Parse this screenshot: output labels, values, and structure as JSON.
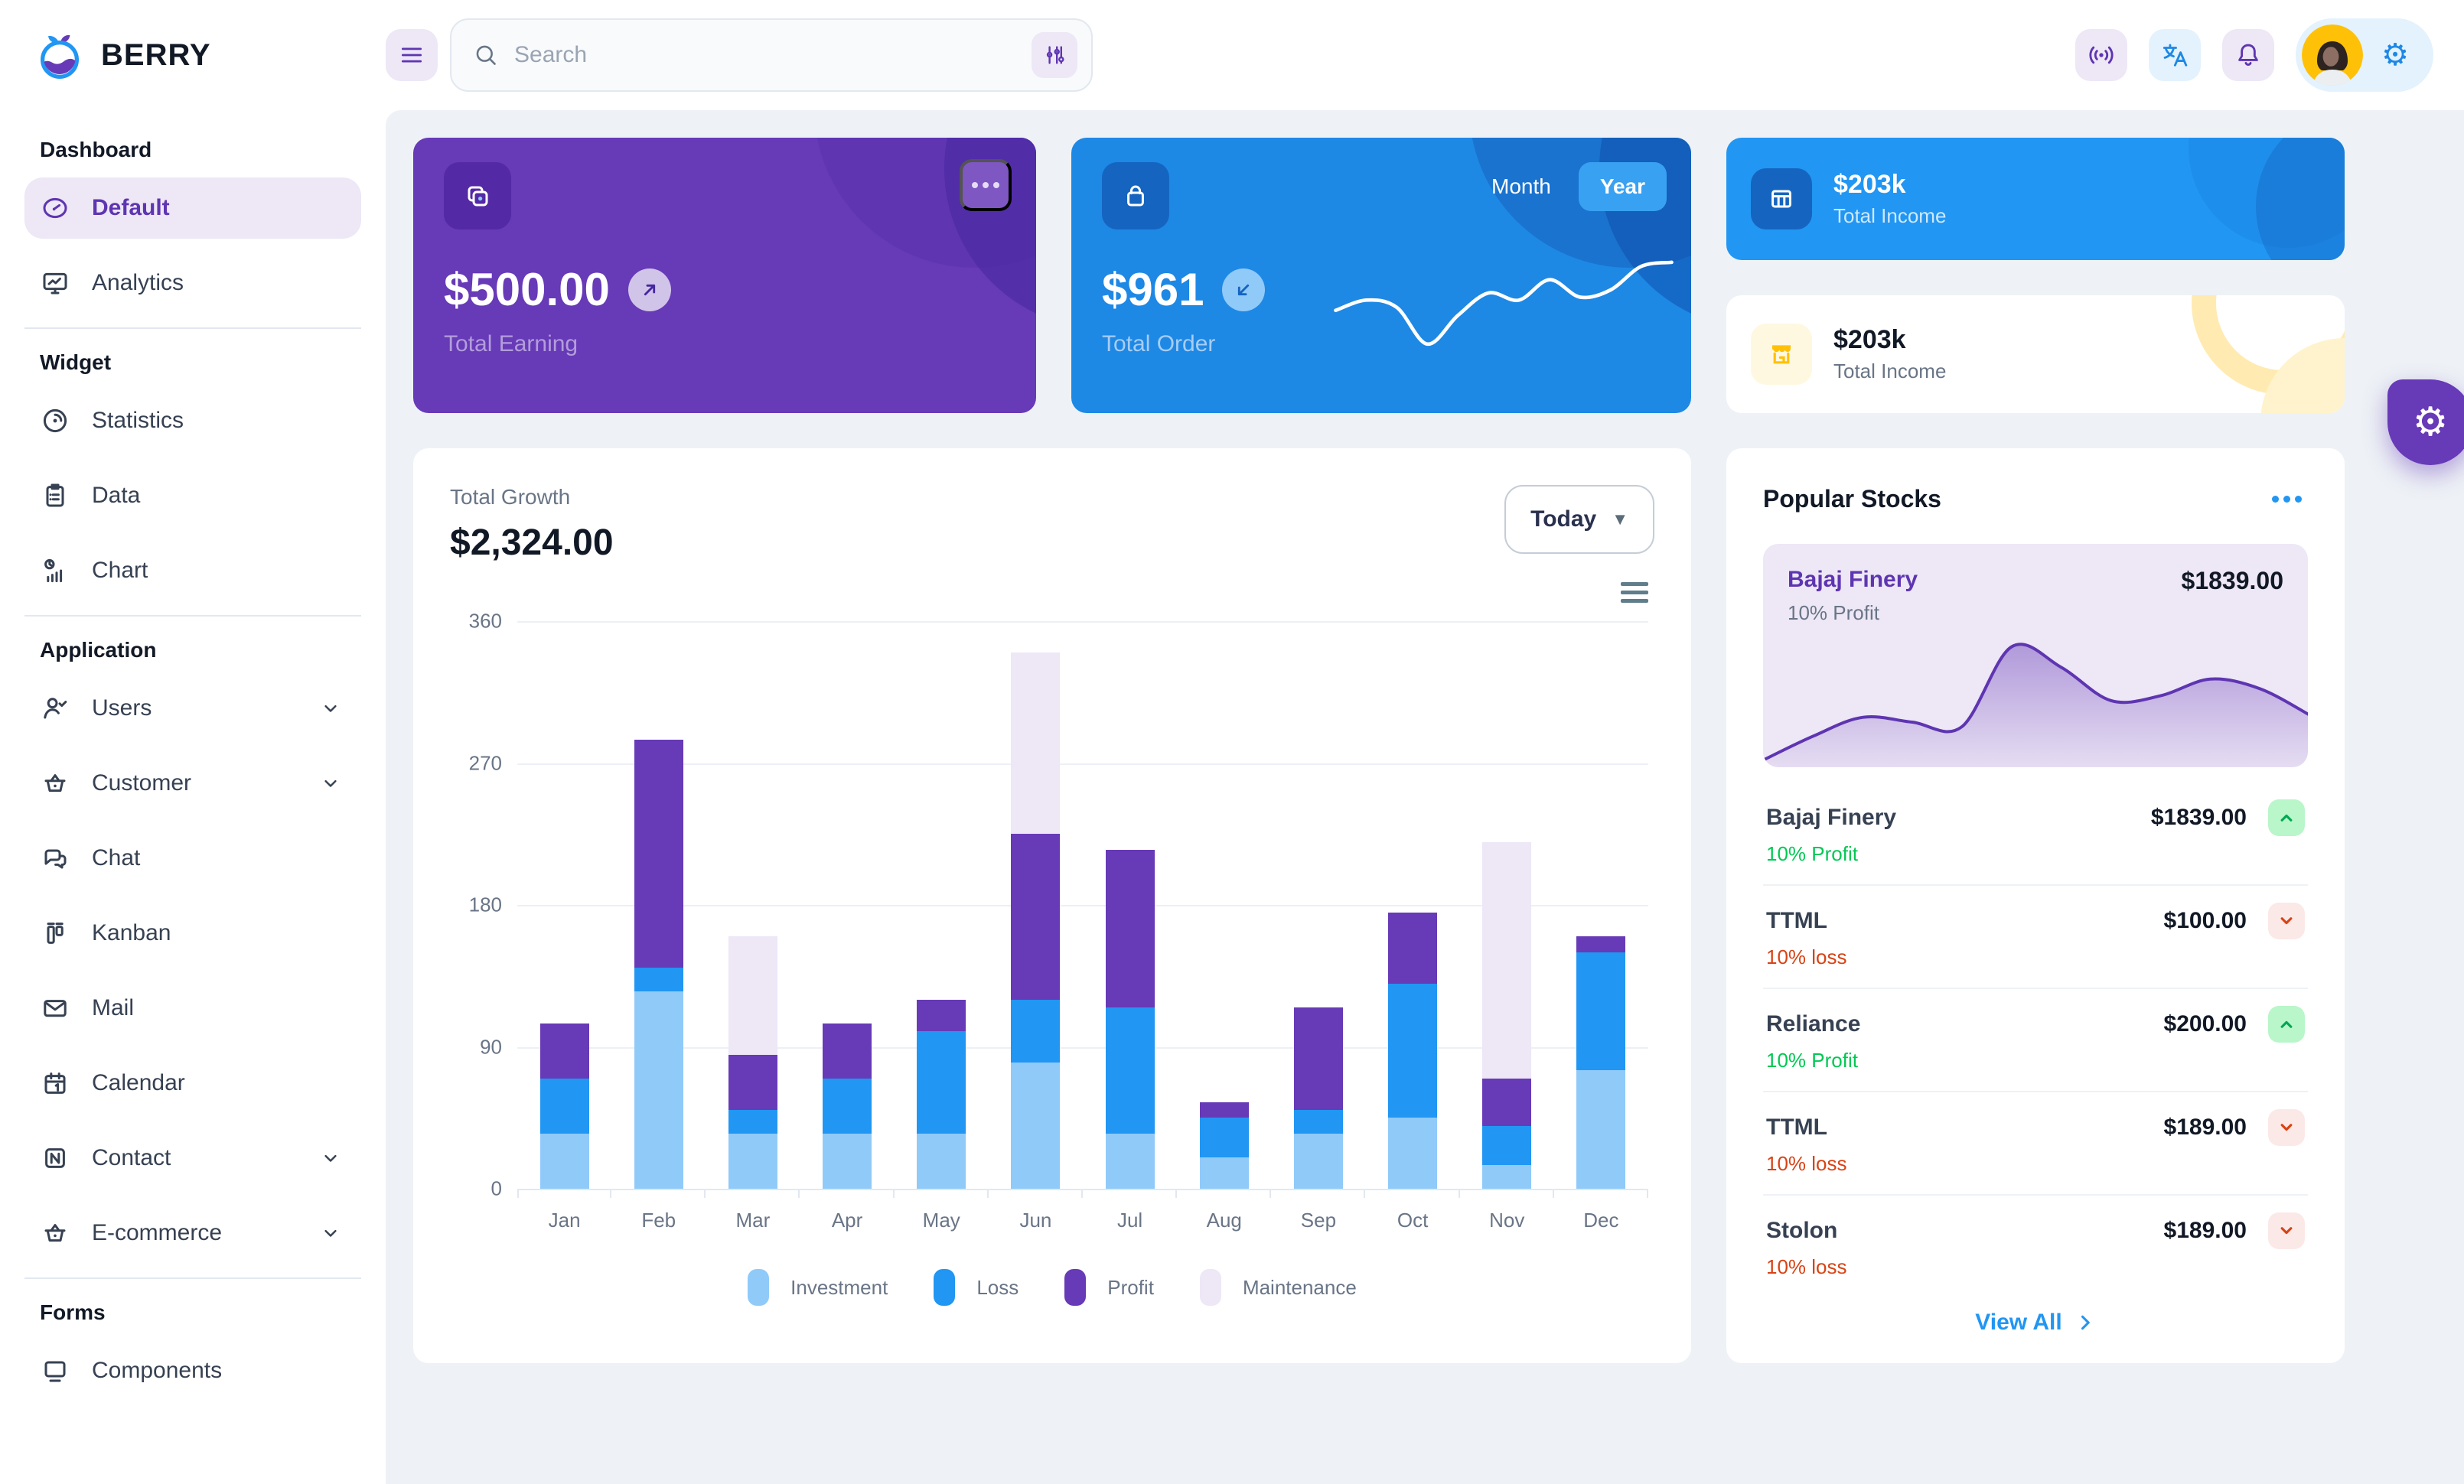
{
  "brand": {
    "name": "BERRY"
  },
  "header": {
    "search_placeholder": "Search",
    "icons": [
      "menu-icon",
      "search-icon",
      "filter-icon",
      "broadcast-icon",
      "translate-icon",
      "notification-icon",
      "avatar",
      "settings-icon"
    ]
  },
  "sidebar": {
    "sections": [
      {
        "title": "Dashboard",
        "items": [
          {
            "label": "Default",
            "icon": "dashboard",
            "active": true
          },
          {
            "label": "Analytics",
            "icon": "analytics"
          }
        ]
      },
      {
        "title": "Widget",
        "items": [
          {
            "label": "Statistics",
            "icon": "statistics"
          },
          {
            "label": "Data",
            "icon": "data"
          },
          {
            "label": "Chart",
            "icon": "chart"
          }
        ]
      },
      {
        "title": "Application",
        "items": [
          {
            "label": "Users",
            "icon": "users",
            "expandable": true
          },
          {
            "label": "Customer",
            "icon": "customer",
            "expandable": true
          },
          {
            "label": "Chat",
            "icon": "chat"
          },
          {
            "label": "Kanban",
            "icon": "kanban"
          },
          {
            "label": "Mail",
            "icon": "mail"
          },
          {
            "label": "Calendar",
            "icon": "calendar"
          },
          {
            "label": "Contact",
            "icon": "contact",
            "expandable": true
          },
          {
            "label": "E-commerce",
            "icon": "ecommerce",
            "expandable": true
          }
        ]
      },
      {
        "title": "Forms",
        "items": [
          {
            "label": "Components",
            "icon": "components",
            "clipped": true
          }
        ]
      }
    ]
  },
  "cards": {
    "earning": {
      "amount": "$500.00",
      "label": "Total Earning"
    },
    "order": {
      "amount": "$961",
      "label": "Total Order",
      "month_label": "Month",
      "year_label": "Year",
      "active_toggle": "Year"
    },
    "income_blue": {
      "amount": "$203k",
      "label": "Total Income"
    },
    "income_light": {
      "amount": "$203k",
      "label": "Total Income"
    }
  },
  "growth": {
    "label": "Total Growth",
    "amount": "$2,324.00",
    "range": "Today"
  },
  "chart_data": [
    {
      "type": "bar",
      "stacked": true,
      "title": "Total Growth",
      "categories": [
        "Jan",
        "Feb",
        "Mar",
        "Apr",
        "May",
        "Jun",
        "Jul",
        "Aug",
        "Sep",
        "Oct",
        "Nov",
        "Dec"
      ],
      "series": [
        {
          "name": "Investment",
          "color": "#90CAF9",
          "values": [
            35,
            125,
            35,
            35,
            35,
            80,
            35,
            20,
            35,
            45,
            15,
            75
          ]
        },
        {
          "name": "Loss",
          "color": "#2196F3",
          "values": [
            35,
            15,
            15,
            35,
            65,
            40,
            80,
            25,
            15,
            85,
            25,
            75
          ]
        },
        {
          "name": "Profit",
          "color": "#673AB7",
          "values": [
            35,
            145,
            35,
            35,
            20,
            105,
            100,
            10,
            65,
            45,
            30,
            10
          ]
        },
        {
          "name": "Maintenance",
          "color": "#EDE7F6",
          "values": [
            0,
            0,
            75,
            0,
            0,
            115,
            0,
            0,
            0,
            0,
            150,
            0
          ]
        }
      ],
      "ylim": [
        0,
        360
      ],
      "yticks": [
        0,
        90,
        180,
        270,
        360
      ],
      "grid": true,
      "legend_position": "bottom"
    },
    {
      "type": "line",
      "title": "Total Order trend (decorative sparkline, unlabeled)",
      "values": [
        45,
        55,
        48,
        12,
        40,
        62,
        55,
        75,
        58,
        65,
        88,
        92
      ]
    },
    {
      "type": "area",
      "title": "Bajaj Finery trend (decorative sparkline, unlabeled)",
      "values": [
        2,
        22,
        38,
        34,
        30,
        97,
        80,
        52,
        56,
        70,
        62,
        40
      ]
    }
  ],
  "stocks": {
    "title": "Popular Stocks",
    "featured": {
      "name": "Bajaj Finery",
      "price": "$1839.00",
      "sub": "10% Profit"
    },
    "rows": [
      {
        "name": "Bajaj Finery",
        "price": "$1839.00",
        "sub": "10% Profit",
        "direction": "up"
      },
      {
        "name": "TTML",
        "price": "$100.00",
        "sub": "10% loss",
        "direction": "down"
      },
      {
        "name": "Reliance",
        "price": "$200.00",
        "sub": "10% Profit",
        "direction": "up"
      },
      {
        "name": "TTML",
        "price": "$189.00",
        "sub": "10% loss",
        "direction": "down"
      },
      {
        "name": "Stolon",
        "price": "$189.00",
        "sub": "10% loss",
        "direction": "down"
      }
    ],
    "view_all": "View All"
  },
  "colors": {
    "accent_purple": "#673AB7",
    "accent_blue": "#2196F3",
    "up_green": "#00C853",
    "down_red": "#D84315",
    "maintenance_lavender": "#EDE7F6"
  }
}
